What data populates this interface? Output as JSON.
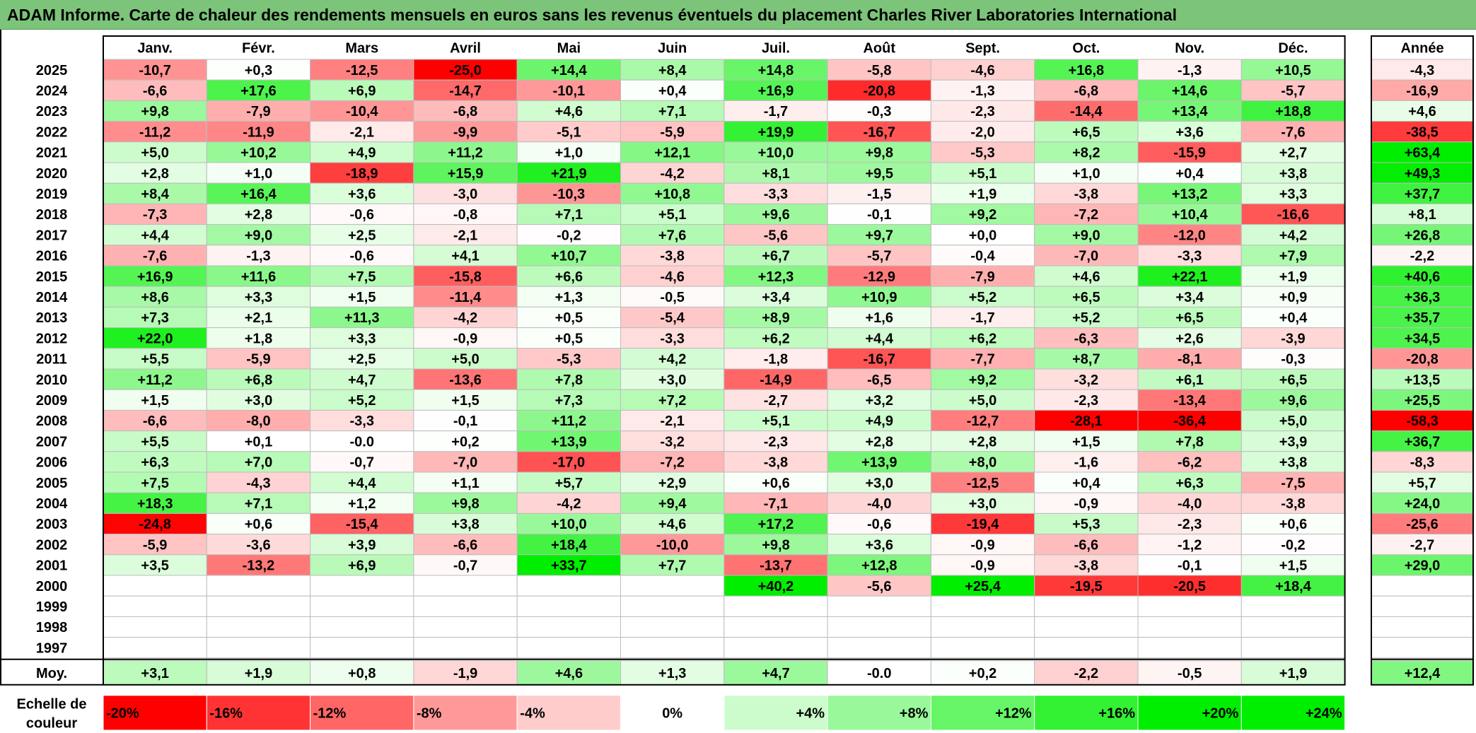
{
  "title": "ADAM Informe. Carte de chaleur des rendements mensuels en euros sans les revenus éventuels du placement Charles River Laboratories International",
  "chart_data": {
    "type": "heatmap",
    "months": [
      "Janv.",
      "Févr.",
      "Mars",
      "Avril",
      "Mai",
      "Juin",
      "Juil.",
      "Août",
      "Sept.",
      "Oct.",
      "Nov.",
      "Déc."
    ],
    "year_header": "Année",
    "unit": "%",
    "rows": [
      {
        "year": "2025",
        "values": [
          -10.7,
          0.3,
          -12.5,
          -25.0,
          14.4,
          8.4,
          14.8,
          -5.8,
          -4.6,
          16.8,
          -1.3,
          10.5
        ],
        "year_total": -4.3
      },
      {
        "year": "2024",
        "values": [
          -6.6,
          17.6,
          6.9,
          -14.7,
          -10.1,
          0.4,
          16.9,
          -20.8,
          -1.3,
          -6.8,
          14.6,
          -5.7
        ],
        "year_total": -16.9
      },
      {
        "year": "2023",
        "values": [
          9.8,
          -7.9,
          -10.4,
          -6.8,
          4.6,
          7.1,
          -1.7,
          -0.3,
          -2.3,
          -14.4,
          13.4,
          18.8
        ],
        "year_total": 4.6
      },
      {
        "year": "2022",
        "values": [
          -11.2,
          -11.9,
          -2.1,
          -9.9,
          -5.1,
          -5.9,
          19.9,
          -16.7,
          -2.0,
          6.5,
          3.6,
          -7.6
        ],
        "year_total": -38.5
      },
      {
        "year": "2021",
        "values": [
          5.0,
          10.2,
          4.9,
          11.2,
          1.0,
          12.1,
          10.0,
          9.8,
          -5.3,
          8.2,
          -15.9,
          2.7
        ],
        "year_total": 63.4
      },
      {
        "year": "2020",
        "values": [
          2.8,
          1.0,
          -18.9,
          15.9,
          21.9,
          -4.2,
          8.1,
          9.5,
          5.1,
          1.0,
          0.4,
          3.8
        ],
        "year_total": 49.3
      },
      {
        "year": "2019",
        "values": [
          8.4,
          16.4,
          3.6,
          -3.0,
          -10.3,
          10.8,
          -3.3,
          -1.5,
          1.9,
          -3.8,
          13.2,
          3.3
        ],
        "year_total": 37.7
      },
      {
        "year": "2018",
        "values": [
          -7.3,
          2.8,
          -0.6,
          -0.8,
          7.1,
          5.1,
          9.6,
          -0.1,
          9.2,
          -7.2,
          10.4,
          -16.6
        ],
        "year_total": 8.1
      },
      {
        "year": "2017",
        "values": [
          4.4,
          9.0,
          2.5,
          -2.1,
          -0.2,
          7.6,
          -5.6,
          9.7,
          0.0,
          9.0,
          -12.0,
          4.2
        ],
        "year_total": 26.8
      },
      {
        "year": "2016",
        "values": [
          -7.6,
          -1.3,
          -0.6,
          4.1,
          10.7,
          -3.8,
          6.7,
          -5.7,
          -0.4,
          -7.0,
          -3.3,
          7.9
        ],
        "year_total": -2.2
      },
      {
        "year": "2015",
        "values": [
          16.9,
          11.6,
          7.5,
          -15.8,
          6.6,
          -4.6,
          12.3,
          -12.9,
          -7.9,
          4.6,
          22.1,
          1.9
        ],
        "year_total": 40.6
      },
      {
        "year": "2014",
        "values": [
          8.6,
          3.3,
          1.5,
          -11.4,
          1.3,
          -0.5,
          3.4,
          10.9,
          5.2,
          6.5,
          3.4,
          0.9
        ],
        "year_total": 36.3
      },
      {
        "year": "2013",
        "values": [
          7.3,
          2.1,
          11.3,
          -4.2,
          0.5,
          -5.4,
          8.9,
          1.6,
          -1.7,
          5.2,
          6.5,
          0.4
        ],
        "year_total": 35.7
      },
      {
        "year": "2012",
        "values": [
          22.0,
          1.8,
          3.3,
          -0.9,
          0.5,
          -3.3,
          6.2,
          4.4,
          6.2,
          -6.3,
          2.6,
          -3.9
        ],
        "year_total": 34.5
      },
      {
        "year": "2011",
        "values": [
          5.5,
          -5.9,
          2.5,
          5.0,
          -5.3,
          4.2,
          -1.8,
          -16.7,
          -7.7,
          8.7,
          -8.1,
          -0.3
        ],
        "year_total": -20.8
      },
      {
        "year": "2010",
        "values": [
          11.2,
          6.8,
          4.7,
          -13.6,
          7.8,
          3.0,
          -14.9,
          -6.5,
          9.2,
          -3.2,
          6.1,
          6.5
        ],
        "year_total": 13.5
      },
      {
        "year": "2009",
        "values": [
          1.5,
          3.0,
          5.2,
          1.5,
          7.3,
          7.2,
          -2.7,
          3.2,
          5.0,
          -2.3,
          -13.4,
          9.6
        ],
        "year_total": 25.5
      },
      {
        "year": "2008",
        "values": [
          -6.6,
          -8.0,
          -3.3,
          -0.1,
          11.2,
          -2.1,
          5.1,
          4.9,
          -12.7,
          -28.1,
          -36.4,
          5.0
        ],
        "year_total": -58.3
      },
      {
        "year": "2007",
        "values": [
          5.5,
          0.1,
          "-0.0",
          0.2,
          13.9,
          -3.2,
          -2.3,
          2.8,
          2.8,
          1.5,
          7.8,
          3.9
        ],
        "year_total": 36.7
      },
      {
        "year": "2006",
        "values": [
          6.3,
          7.0,
          -0.7,
          -7.0,
          -17.0,
          -7.2,
          -3.8,
          13.9,
          8.0,
          -1.6,
          -6.2,
          3.8
        ],
        "year_total": -8.3
      },
      {
        "year": "2005",
        "values": [
          7.5,
          -4.3,
          4.4,
          1.1,
          5.7,
          2.9,
          0.6,
          3.0,
          -12.5,
          0.4,
          6.3,
          -7.5
        ],
        "year_total": 5.7
      },
      {
        "year": "2004",
        "values": [
          18.3,
          7.1,
          1.2,
          9.8,
          -4.2,
          9.4,
          -7.1,
          -4.0,
          3.0,
          -0.9,
          -4.0,
          -3.8
        ],
        "year_total": 24.0
      },
      {
        "year": "2003",
        "values": [
          -24.8,
          0.6,
          -15.4,
          3.8,
          10.0,
          4.6,
          17.2,
          -0.6,
          -19.4,
          5.3,
          -2.3,
          0.6
        ],
        "year_total": -25.6
      },
      {
        "year": "2002",
        "values": [
          -5.9,
          -3.6,
          3.9,
          -6.6,
          18.4,
          -10.0,
          9.8,
          3.6,
          -0.9,
          -6.6,
          -1.2,
          -0.2
        ],
        "year_total": -2.7
      },
      {
        "year": "2001",
        "values": [
          3.5,
          -13.2,
          6.9,
          -0.7,
          33.7,
          7.7,
          -13.7,
          12.8,
          -0.9,
          -3.8,
          -0.1,
          1.5
        ],
        "year_total": 29.0
      },
      {
        "year": "2000",
        "values": [
          null,
          null,
          null,
          null,
          null,
          null,
          40.2,
          -5.6,
          25.4,
          -19.5,
          -20.5,
          18.4
        ],
        "year_total": null
      },
      {
        "year": "1999",
        "values": [
          null,
          null,
          null,
          null,
          null,
          null,
          null,
          null,
          null,
          null,
          null,
          null
        ],
        "year_total": null
      },
      {
        "year": "1998",
        "values": [
          null,
          null,
          null,
          null,
          null,
          null,
          null,
          null,
          null,
          null,
          null,
          null
        ],
        "year_total": null
      },
      {
        "year": "1997",
        "values": [
          null,
          null,
          null,
          null,
          null,
          null,
          null,
          null,
          null,
          null,
          null,
          null
        ],
        "year_total": null
      }
    ],
    "average_row": {
      "label": "Moy.",
      "values": [
        3.1,
        1.9,
        0.8,
        -1.9,
        4.6,
        1.3,
        4.7,
        "-0.0",
        0.2,
        -2.2,
        -0.5,
        1.9
      ],
      "year_total": 12.4
    },
    "scale": {
      "label": "Echelle de couleur",
      "steps": [
        "-20%",
        "-16%",
        "-12%",
        "-8%",
        "-4%",
        "0%",
        "+4%",
        "+8%",
        "+12%",
        "+16%",
        "+20%",
        "+24%"
      ]
    },
    "colors": {
      "negative_max": "#ff0000",
      "neutral": "#ffffff",
      "positive_max": "#00ee00",
      "title_background": "#7cc47a"
    }
  }
}
